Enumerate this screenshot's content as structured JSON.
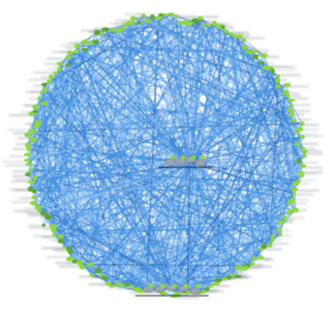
{
  "diagram": {
    "type": "circular-network-graph",
    "text_legible": false,
    "colors": {
      "background": "#ffffff",
      "edge_primary": "#3f8fe0",
      "edge_secondary": "#8fc2f2",
      "edge_dark": "#1f5fb0",
      "node_fill": "#8fd63f",
      "node_dark": "#5fa52a",
      "hub_fill": "#9aa6b4",
      "label_smudge": "#3a4a5a"
    },
    "ring": {
      "node_count": 180,
      "label_lines_per_node": 1
    },
    "edges": {
      "count": 900
    },
    "hubs": {
      "center_cluster_nodes": 4,
      "bottom_cluster_nodes": 5
    },
    "icons": [
      "graph-node-icon",
      "hub-node-icon"
    ]
  }
}
